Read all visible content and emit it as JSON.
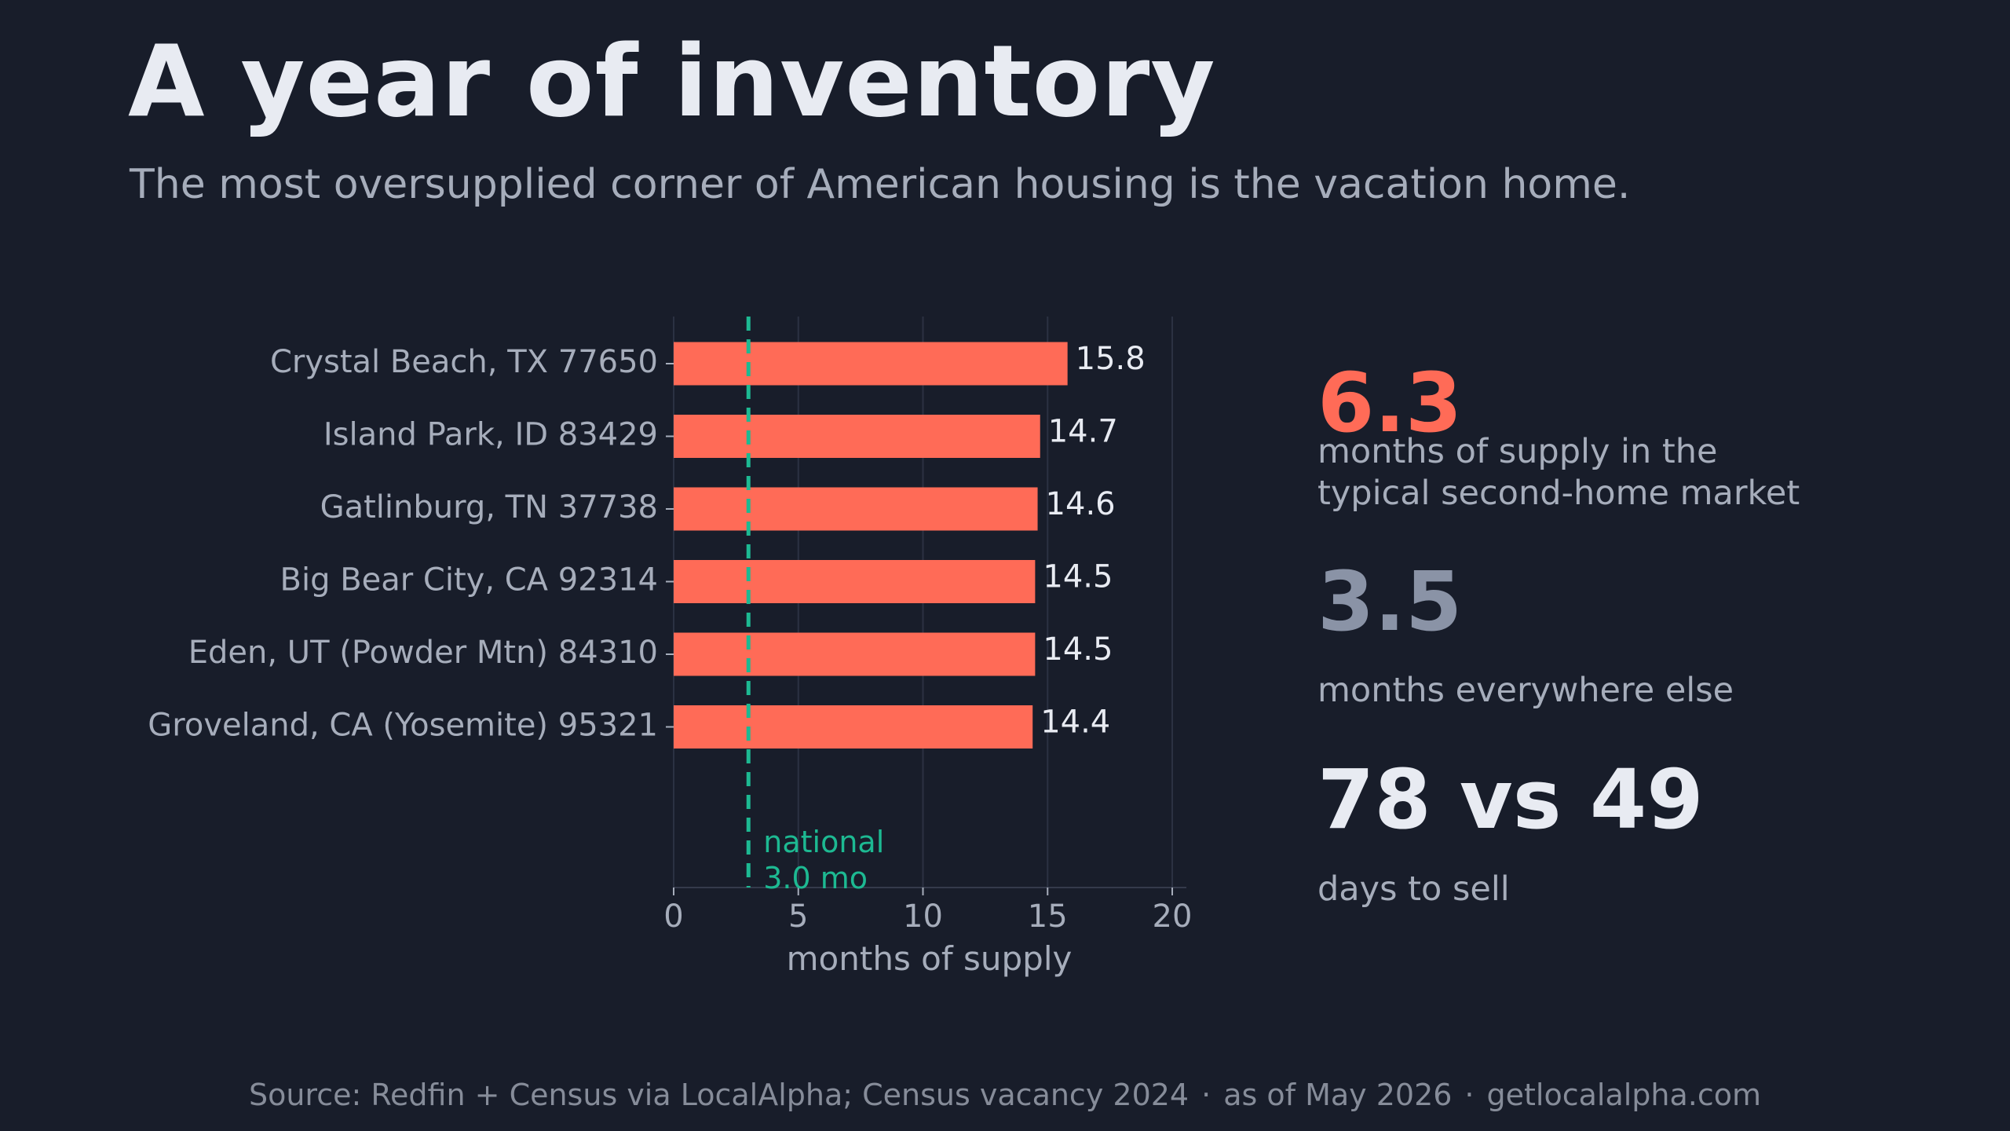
{
  "title": "A year of inventory",
  "subtitle": "The most oversupplied corner of American housing is the vacation home.",
  "colors": {
    "background": "#181d2a",
    "bar": "#ff6b57",
    "national_line": "#1db992",
    "highlight": "#ff6b57",
    "muted": "#8a93a6",
    "text": "#e8ebf2",
    "label": "#a6adbb"
  },
  "chart_data": {
    "type": "bar",
    "orientation": "horizontal",
    "categories": [
      "Crystal Beach, TX 77650",
      "Island Park, ID 83429",
      "Gatlinburg, TN 37738",
      "Big Bear City, CA 92314",
      "Eden, UT (Powder Mtn) 84310",
      "Groveland, CA (Yosemite) 95321"
    ],
    "values": [
      15.8,
      14.7,
      14.6,
      14.5,
      14.5,
      14.4
    ],
    "value_labels": [
      "15.8",
      "14.7",
      "14.6",
      "14.5",
      "14.5",
      "14.4"
    ],
    "xlabel": "months of supply",
    "xlim": [
      0,
      20
    ],
    "xticks": [
      0,
      5,
      10,
      15,
      20
    ],
    "xtick_labels": [
      "0",
      "5",
      "10",
      "15",
      "20"
    ],
    "grid": "vertical",
    "reference_line": {
      "value": 3.0,
      "label_line1": "national",
      "label_line2": "3.0 mo",
      "style": "dashed"
    }
  },
  "stats": [
    {
      "value": "6.3",
      "label_line1": "months of supply in the",
      "label_line2": "typical second-home market"
    },
    {
      "value": "3.5",
      "label_line1": "months everywhere else"
    },
    {
      "value": "78 vs 49",
      "label_line1": "days to sell"
    }
  ],
  "footer": {
    "source": "Source: Redfin + Census via LocalAlpha; Census vacancy 2024",
    "as_of": "as of May 2026",
    "site": "getlocalalpha.com",
    "separator": "·"
  }
}
